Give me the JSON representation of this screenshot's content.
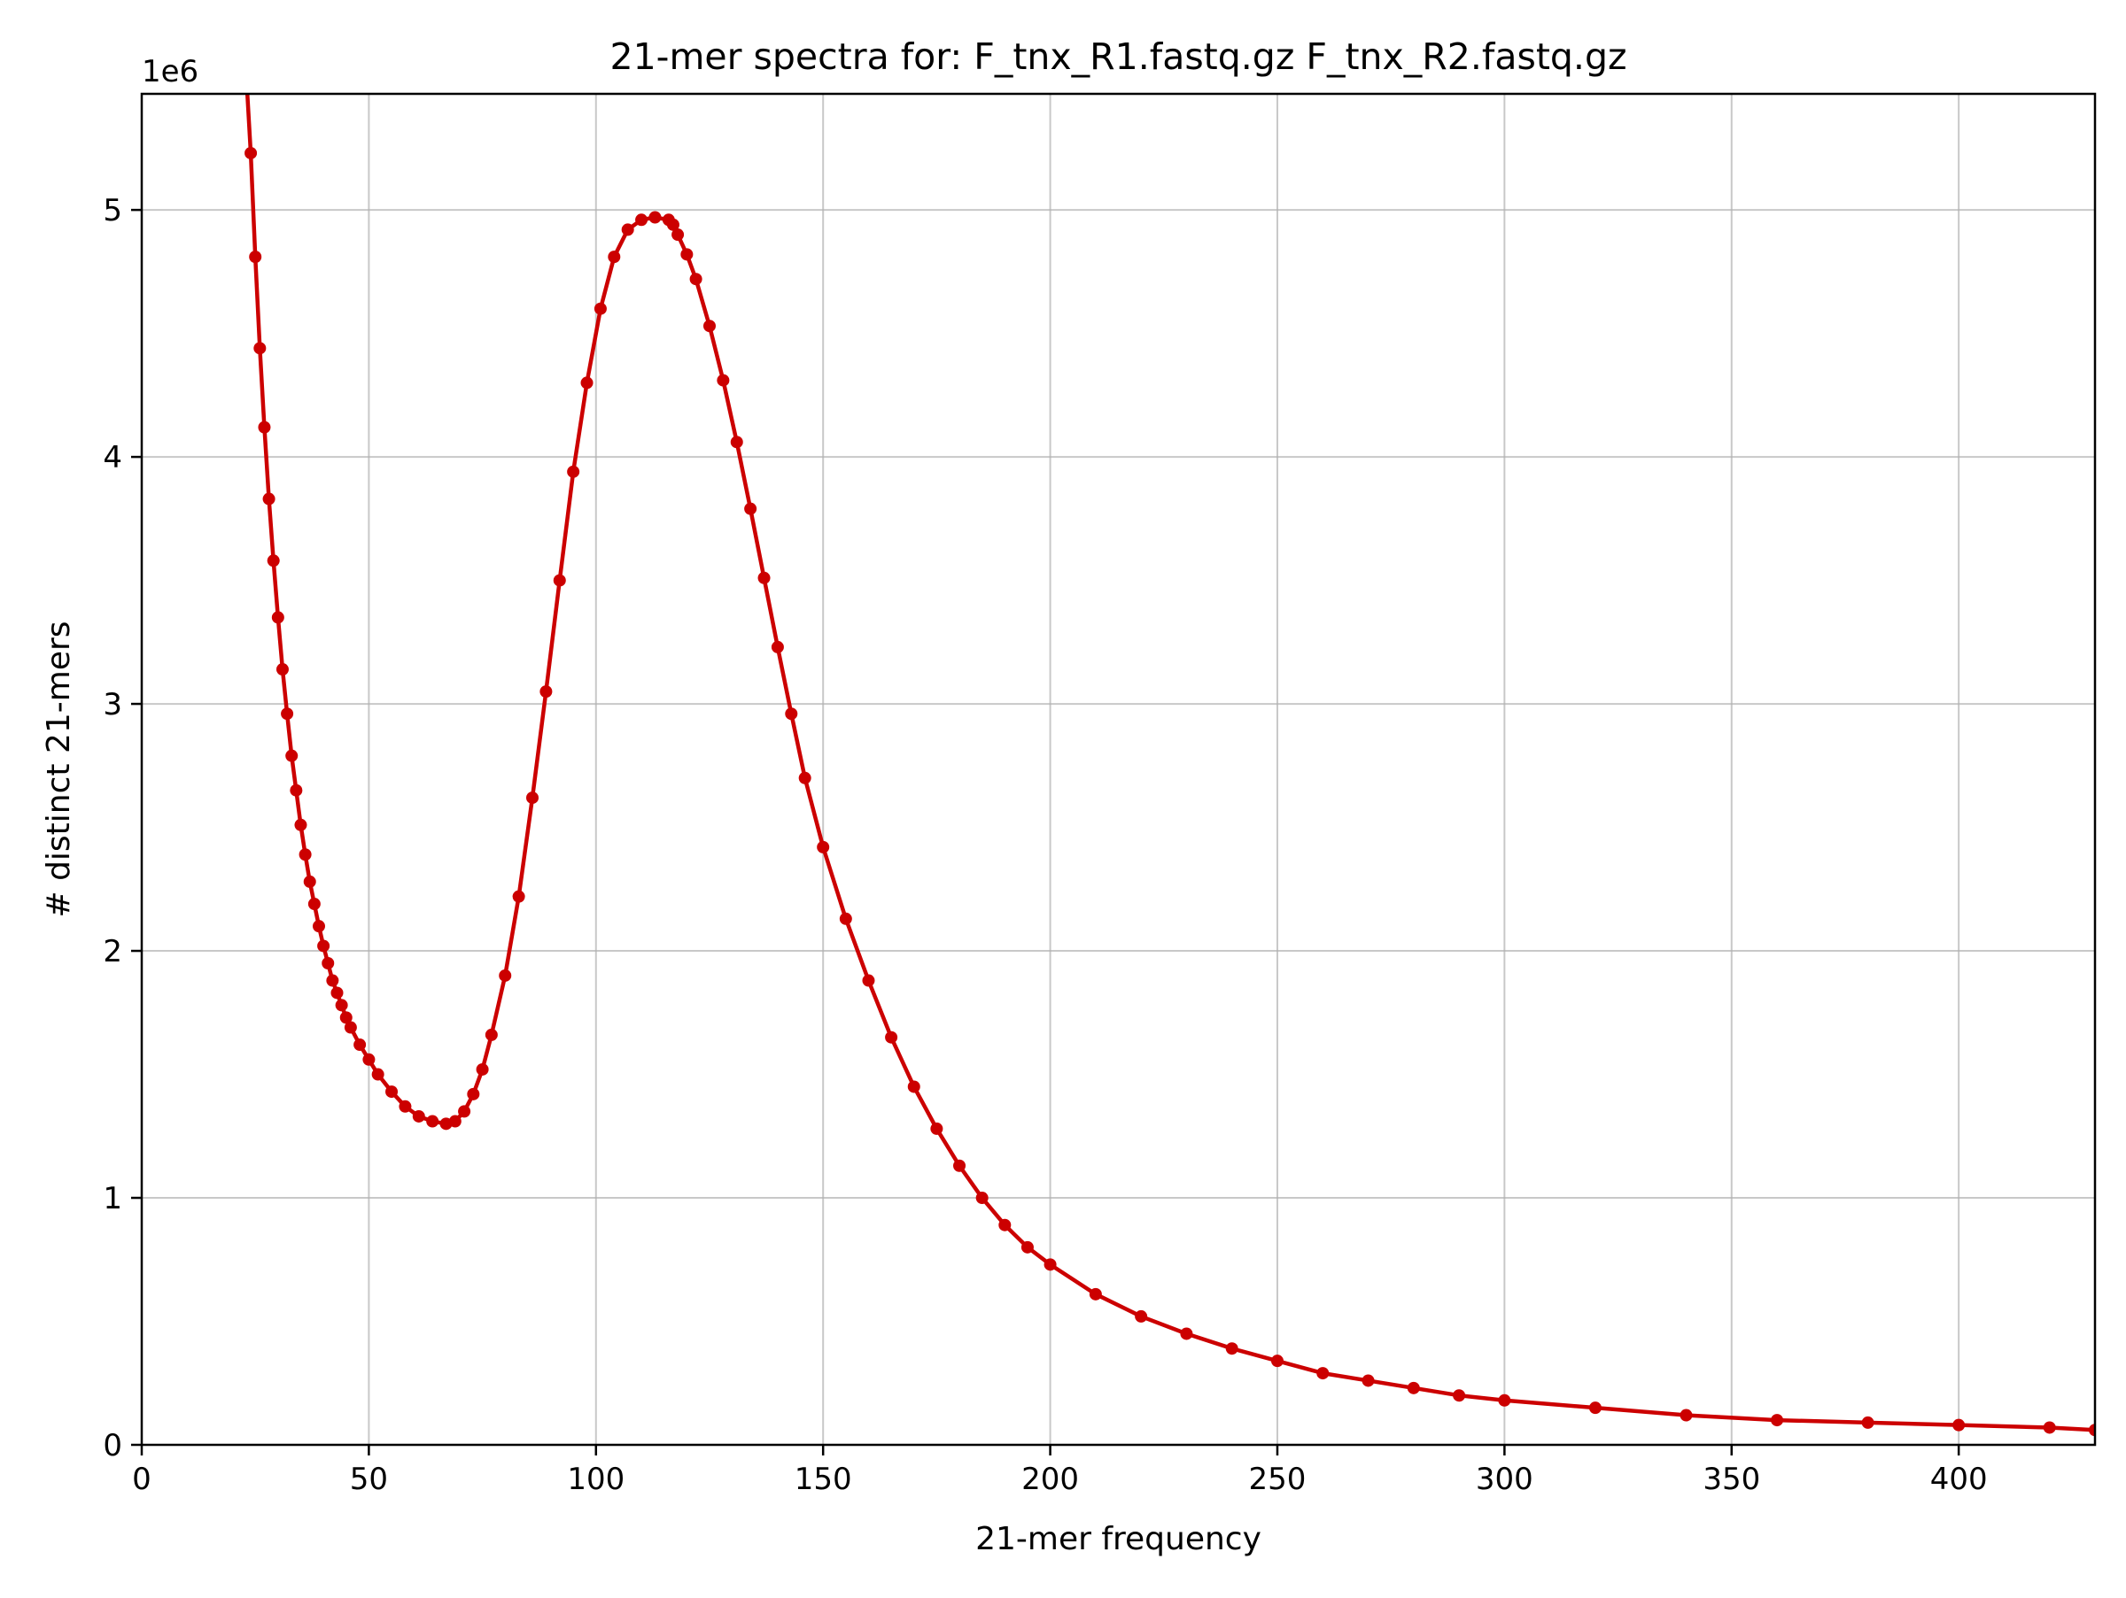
{
  "chart_data": {
    "type": "line",
    "title": "21-mer spectra for: F_tnx_R1.fastq.gz F_tnx_R2.fastq.gz",
    "xlabel": "21-mer frequency",
    "ylabel": "# distinct 21-mers",
    "y_offset_label": "1e6",
    "xlim": [
      0,
      430
    ],
    "ylim": [
      0,
      5.47
    ],
    "x_ticks": [
      0,
      50,
      100,
      150,
      200,
      250,
      300,
      350,
      400
    ],
    "x_tick_labels": [
      "0",
      "50",
      "100",
      "150",
      "200",
      "250",
      "300",
      "350",
      "400"
    ],
    "y_ticks": [
      0,
      1,
      2,
      3,
      4,
      5
    ],
    "y_tick_labels": [
      "0",
      "1",
      "2",
      "3",
      "4",
      "5"
    ],
    "grid": true,
    "series": [
      {
        "color": "#cc0000",
        "marker": "circle",
        "x": [
          24,
          25,
          26,
          27,
          28,
          29,
          30,
          31,
          32,
          33,
          34,
          35,
          36,
          37,
          38,
          39,
          40,
          41,
          42,
          43,
          44,
          45,
          46,
          48,
          50,
          52,
          55,
          58,
          61,
          64,
          67,
          69,
          71,
          73,
          75,
          77,
          80,
          83,
          86,
          89,
          92,
          95,
          98,
          101,
          104,
          107,
          110,
          113,
          116,
          117,
          118,
          120,
          122,
          125,
          128,
          131,
          134,
          137,
          140,
          143,
          146,
          150,
          155,
          160,
          165,
          170,
          175,
          180,
          185,
          190,
          195,
          200,
          210,
          220,
          230,
          240,
          250,
          260,
          270,
          280,
          290,
          300,
          320,
          340,
          360,
          380,
          400,
          420,
          430
        ],
        "y": [
          5.23,
          4.81,
          4.44,
          4.12,
          3.83,
          3.58,
          3.35,
          3.14,
          2.96,
          2.79,
          2.65,
          2.51,
          2.39,
          2.28,
          2.19,
          2.1,
          2.02,
          1.95,
          1.88,
          1.83,
          1.78,
          1.73,
          1.69,
          1.62,
          1.56,
          1.5,
          1.43,
          1.37,
          1.33,
          1.31,
          1.3,
          1.31,
          1.35,
          1.42,
          1.52,
          1.66,
          1.9,
          2.22,
          2.62,
          3.05,
          3.5,
          3.94,
          4.3,
          4.6,
          4.81,
          4.92,
          4.96,
          4.97,
          4.96,
          4.94,
          4.9,
          4.82,
          4.72,
          4.53,
          4.31,
          4.06,
          3.79,
          3.51,
          3.23,
          2.96,
          2.7,
          2.42,
          2.13,
          1.88,
          1.65,
          1.45,
          1.28,
          1.13,
          1.0,
          0.89,
          0.8,
          0.73,
          0.61,
          0.52,
          0.45,
          0.39,
          0.34,
          0.29,
          0.26,
          0.23,
          0.2,
          0.18,
          0.15,
          0.12,
          0.1,
          0.09,
          0.08,
          0.07,
          0.06
        ]
      }
    ]
  }
}
